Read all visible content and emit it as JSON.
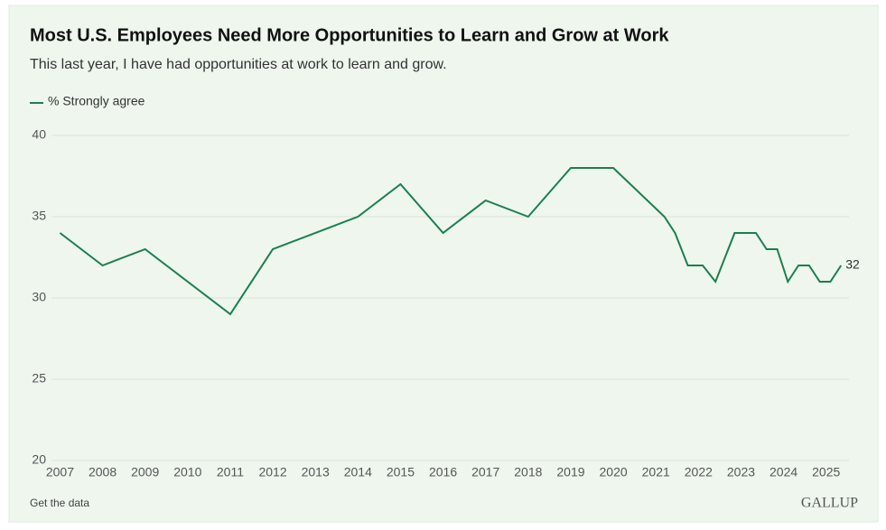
{
  "chart_data": {
    "type": "line",
    "title": "Most U.S. Employees Need More Opportunities to Learn and Grow at Work",
    "subtitle": "This last year, I have had opportunities at work to learn and grow.",
    "x": [
      2007,
      2008,
      2009,
      2011,
      2012,
      2014,
      2015,
      2016,
      2017,
      2018,
      2019,
      2020,
      2021.2,
      2021.45,
      2021.75,
      2022.1,
      2022.4,
      2022.7,
      2022.85,
      2023.35,
      2023.6,
      2023.85,
      2024.1,
      2024.35,
      2024.6,
      2024.85,
      2025.1,
      2025.35
    ],
    "series": [
      {
        "name": "% Strongly agree",
        "color": "#1b7f4e",
        "values": [
          34,
          32,
          33,
          29,
          33,
          35,
          37,
          34,
          36,
          35,
          38,
          38,
          35,
          34,
          32,
          32,
          31,
          33,
          34,
          34,
          33,
          33,
          31,
          32,
          32,
          31,
          31,
          32
        ]
      }
    ],
    "xlim": [
      2006.8,
      2025.6
    ],
    "xticks": [
      2007,
      2008,
      2009,
      2010,
      2011,
      2012,
      2013,
      2014,
      2015,
      2016,
      2017,
      2018,
      2019,
      2020,
      2021,
      2022,
      2023,
      2024,
      2025
    ],
    "ylim": [
      20,
      40
    ],
    "yticks": [
      20,
      25,
      30,
      35,
      40
    ],
    "grid": true,
    "footer_link": "Get the data",
    "brand": "GALLUP"
  }
}
